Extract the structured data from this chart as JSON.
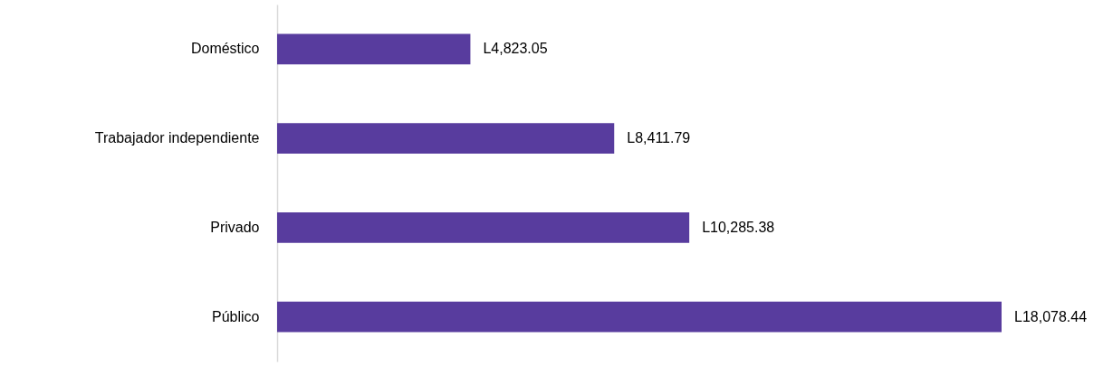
{
  "chart_data": {
    "type": "bar",
    "orientation": "horizontal",
    "categories": [
      "Doméstico",
      "Trabajador independiente",
      "Privado",
      "Público"
    ],
    "values": [
      4823.05,
      8411.79,
      10285.38,
      18078.44
    ],
    "value_labels": [
      "L4,823.05",
      "L8,411.79",
      "L10,285.38",
      "L18,078.44"
    ],
    "color": "#583c9e"
  }
}
